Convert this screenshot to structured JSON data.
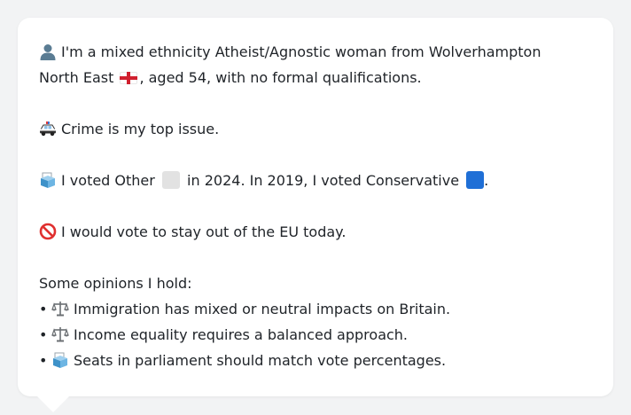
{
  "profile": {
    "intro_line1": "I'm a mixed ethnicity Atheist/Agnostic woman from Wolverhampton",
    "intro_line2_a": "North East",
    "intro_line2_b": ", aged 54, with no formal qualifications.",
    "top_issue": "Crime is my top issue.",
    "vote_a": "I voted Other",
    "vote_b": "in 2024. In 2019, I voted Conservative",
    "vote_c": ".",
    "eu": "I would vote to stay out of the EU today.",
    "opinions_heading": "Some opinions I hold:",
    "bullet_char": "•",
    "opinions": [
      "Immigration has mixed or neutral impacts on Britain.",
      "Income equality requires a balanced approach.",
      "Seats in parliament should match vote percentages."
    ]
  },
  "icons": {
    "person": "person-icon",
    "flag": "england-flag-icon",
    "police_car": "police-car-icon",
    "ballot": "ballot-box-icon",
    "no_entry": "no-entry-icon",
    "scales": "balance-scale-icon"
  },
  "colors": {
    "other_swatch": "#e2e2e2",
    "conservative_swatch": "#1f6fd6"
  }
}
